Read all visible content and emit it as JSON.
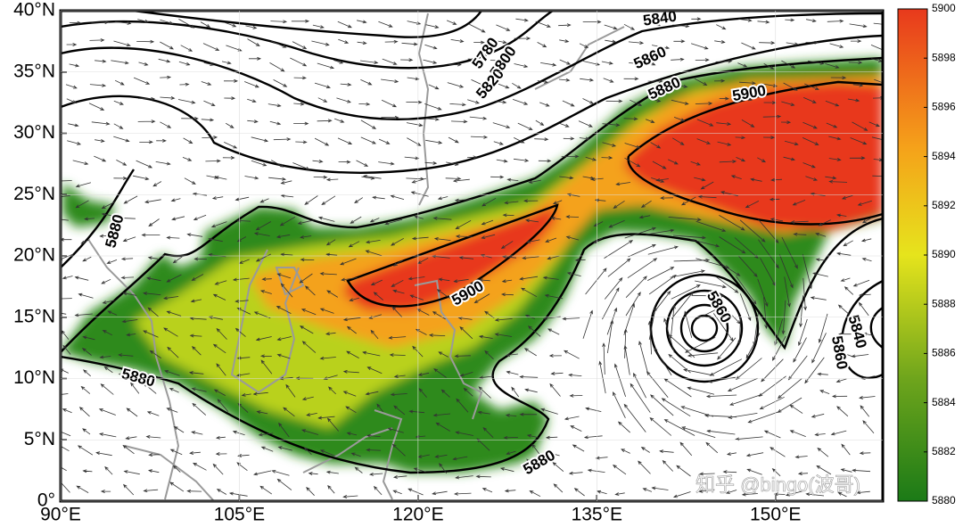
{
  "chart_data": {
    "type": "map",
    "xlim": [
      90,
      159
    ],
    "ylim": [
      0,
      40
    ],
    "xticks": [
      {
        "value": 90,
        "label": "90°E"
      },
      {
        "value": 105,
        "label": "105°E"
      },
      {
        "value": 120,
        "label": "120°E"
      },
      {
        "value": 135,
        "label": "135°E"
      },
      {
        "value": 150,
        "label": "150°E"
      }
    ],
    "yticks": [
      {
        "value": 0,
        "label": "0°"
      },
      {
        "value": 5,
        "label": "5°N"
      },
      {
        "value": 10,
        "label": "10°N"
      },
      {
        "value": 15,
        "label": "15°N"
      },
      {
        "value": 20,
        "label": "20°N"
      },
      {
        "value": 25,
        "label": "25°N"
      },
      {
        "value": 30,
        "label": "30°N"
      },
      {
        "value": 35,
        "label": "35°N"
      },
      {
        "value": 40,
        "label": "40°N"
      }
    ],
    "colorbar": {
      "lim": [
        5880,
        5900
      ],
      "ticks": [
        5880,
        5882,
        5884,
        5886,
        5888,
        5890,
        5892,
        5894,
        5896,
        5898,
        5900
      ]
    },
    "contour_labels": [
      {
        "value": 5840,
        "lon": 140.3,
        "lat": 39.3
      },
      {
        "value": 5780,
        "lon": 125.7,
        "lat": 36.5
      },
      {
        "value": 5800,
        "lon": 127.2,
        "lat": 35.8
      },
      {
        "value": 5820,
        "lon": 126.1,
        "lat": 34.0
      },
      {
        "value": 5860,
        "lon": 139.5,
        "lat": 36.1
      },
      {
        "value": 5880,
        "lon": 140.7,
        "lat": 33.6
      },
      {
        "value": 5900,
        "lon": 147.8,
        "lat": 33.2
      },
      {
        "value": 5880,
        "lon": 94.6,
        "lat": 22.0
      },
      {
        "value": 5900,
        "lon": 124.2,
        "lat": 16.9
      },
      {
        "value": 5880,
        "lon": 96.5,
        "lat": 10.0
      },
      {
        "value": 5880,
        "lon": 130.2,
        "lat": 3.1
      },
      {
        "value": 5860,
        "lon": 145.2,
        "lat": 15.8
      },
      {
        "value": 5840,
        "lon": 156.8,
        "lat": 13.8
      },
      {
        "value": 5860,
        "lon": 155.3,
        "lat": 12.1
      }
    ],
    "watermark": "知乎 @bingo(波哥)"
  }
}
